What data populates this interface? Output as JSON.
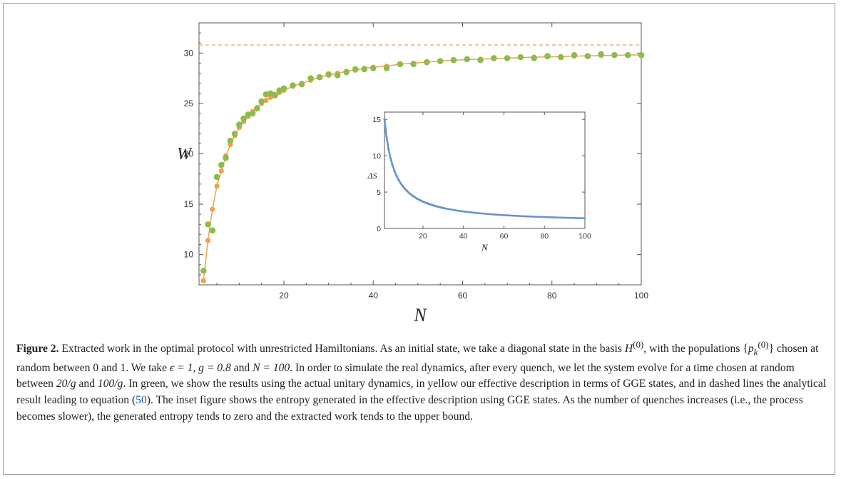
{
  "figure": {
    "caption_label": "Figure 2.",
    "caption_parts": {
      "p1": " Extracted work in the optimal protocol with unrestricted Hamiltonians. As an initial state, we take a diagonal state in the basis ",
      "basis": "H",
      "basis_sup": "(0)",
      "p2": ", with the populations {",
      "pop": "p",
      "pop_sub": "k",
      "pop_sup": "(0)",
      "p3": "} chosen at random between 0 and 1. We take ",
      "eps": "ϵ = 1",
      "sep1": ", ",
      "gval": "g = 0.8",
      "and": " and ",
      "nval": "N = 100",
      "p4": ". In order to simulate the real dynamics, after every quench, we let the system evolve for a time chosen at random between ",
      "t1": "20/g",
      "and2": " and ",
      "t2": "100/g",
      "p5": ". In green, we show the results using the actual unitary dynamics, in yellow our effective description in terms of GGE states, and in dashed lines the analytical result leading to equation (",
      "eq": "50",
      "p6": "). The inset figure shows the entropy generated in the effective description using GGE states. As the number of quenches increases (i.e., the process becomes slower), the generated entropy tends to zero and the extracted work tends to the upper bound."
    }
  },
  "chart_data": [
    {
      "type": "line",
      "xlabel": "N",
      "ylabel": "W",
      "xlim": [
        1,
        100
      ],
      "ylim": [
        7,
        33
      ],
      "xticks": [
        20,
        40,
        60,
        80,
        100
      ],
      "yticks": [
        10,
        15,
        20,
        25,
        30
      ],
      "upper_bound": 30.8,
      "colors": {
        "unitary": "#8cbc4c",
        "gge": "#f0a050",
        "bound": "#f4b070",
        "axis": "#555555"
      },
      "series": [
        {
          "x": [
            2,
            3,
            4,
            5,
            6,
            7,
            8,
            9,
            10,
            11,
            12,
            13,
            14,
            15,
            16,
            17,
            18,
            19,
            20,
            22,
            24,
            26,
            28,
            30,
            32,
            34,
            36,
            38,
            40,
            43,
            46,
            49,
            52,
            55,
            58,
            61,
            64,
            67,
            70,
            73,
            76,
            79,
            82,
            85,
            88,
            91,
            94,
            97,
            100
          ],
          "values": [
            7.4,
            11.4,
            14.5,
            16.8,
            18.3,
            19.8,
            20.9,
            21.8,
            22.6,
            23.2,
            23.7,
            24.2,
            24.6,
            25.0,
            25.3,
            25.6,
            25.9,
            26.1,
            26.3,
            26.7,
            27.0,
            27.3,
            27.6,
            27.8,
            28.0,
            28.2,
            28.3,
            28.5,
            28.6,
            28.7,
            28.9,
            29.0,
            29.1,
            29.2,
            29.3,
            29.35,
            29.4,
            29.45,
            29.5,
            29.55,
            29.6,
            29.62,
            29.65,
            29.7,
            29.72,
            29.75,
            29.78,
            29.8,
            29.82
          ]
        },
        {
          "x": [
            2,
            3,
            4,
            5,
            6,
            7,
            8,
            9,
            10,
            11,
            12,
            13,
            14,
            15,
            16,
            17,
            18,
            19,
            20,
            22,
            24,
            26,
            28,
            30,
            32,
            34,
            36,
            38,
            40,
            43,
            46,
            49,
            52,
            55,
            58,
            61,
            64,
            67,
            70,
            73,
            76,
            79,
            82,
            85,
            88,
            91,
            94,
            97,
            100
          ],
          "values": [
            8.4,
            13.0,
            12.4,
            17.7,
            18.9,
            19.6,
            21.3,
            22.0,
            22.9,
            23.5,
            23.9,
            24.0,
            24.5,
            25.2,
            25.9,
            26.0,
            25.8,
            26.3,
            26.5,
            26.8,
            26.9,
            27.5,
            27.6,
            27.9,
            27.8,
            28.1,
            28.4,
            28.4,
            28.5,
            28.5,
            28.9,
            28.9,
            29.1,
            29.2,
            29.3,
            29.4,
            29.3,
            29.5,
            29.5,
            29.6,
            29.5,
            29.7,
            29.6,
            29.8,
            29.7,
            29.9,
            29.8,
            29.8,
            29.8
          ]
        }
      ]
    },
    {
      "type": "line",
      "xlabel": "N",
      "ylabel": "ΔS",
      "xlim": [
        1,
        100
      ],
      "ylim": [
        0,
        16
      ],
      "xticks": [
        20,
        40,
        60,
        80,
        100
      ],
      "yticks": [
        0,
        5,
        10,
        15
      ],
      "colors": {
        "line": "#6a93cc",
        "axis": "#555555"
      },
      "series": [
        {
          "x": [
            1,
            100
          ],
          "values": [
            15.0,
            1.4
          ]
        }
      ]
    }
  ]
}
